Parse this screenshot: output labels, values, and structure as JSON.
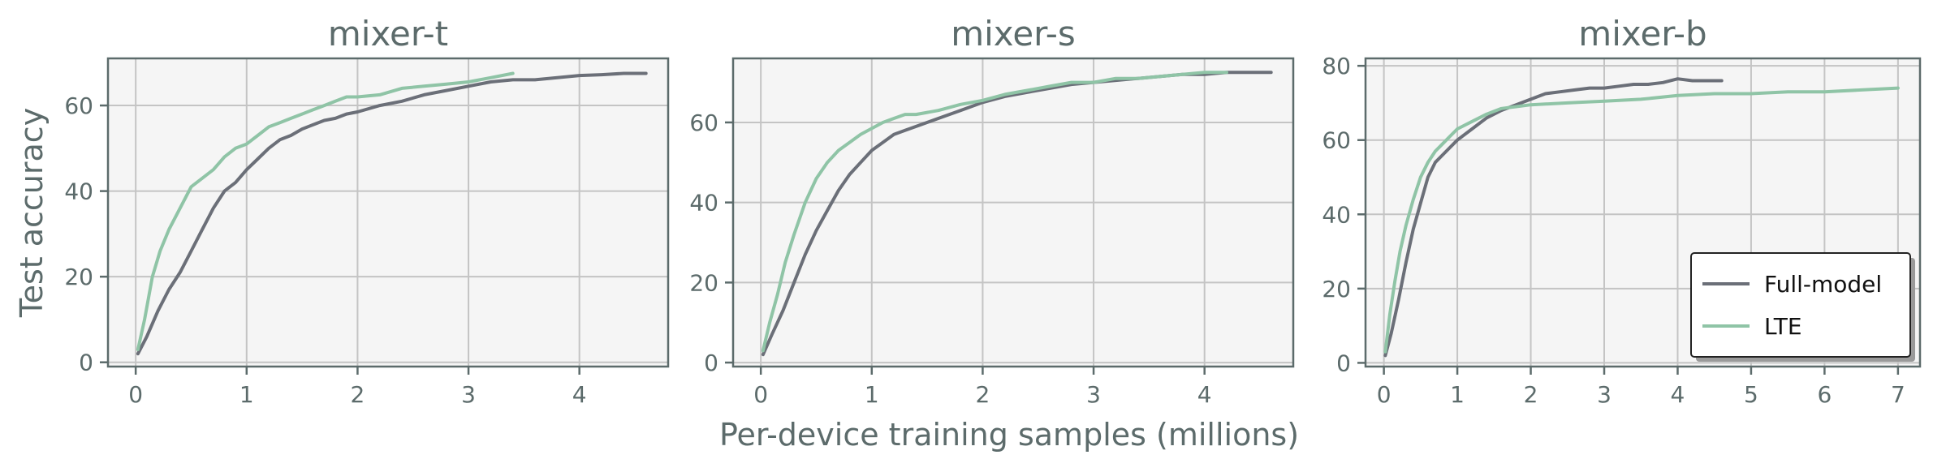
{
  "figure": {
    "xlabel": "Per-device training samples (millions)",
    "ylabel": "Test accuracy",
    "colors": {
      "full_model": "#6b6f78",
      "lte": "#8fc4a6",
      "frame": "#5c6b6b",
      "grid": "#c4c4c4",
      "panel_bg": "#f5f5f5"
    }
  },
  "chart_data": [
    {
      "type": "line",
      "title": "mixer-t",
      "xlim": [
        -0.25,
        4.8
      ],
      "ylim": [
        -1,
        71
      ],
      "xticks": [
        0,
        1,
        2,
        3,
        4
      ],
      "yticks": [
        0,
        20,
        40,
        60
      ],
      "grid": true,
      "series": [
        {
          "name": "Full-model",
          "color": "#6b6f78",
          "points": [
            [
              0.02,
              2
            ],
            [
              0.1,
              6
            ],
            [
              0.2,
              12
            ],
            [
              0.3,
              17
            ],
            [
              0.4,
              21
            ],
            [
              0.5,
              26
            ],
            [
              0.6,
              31
            ],
            [
              0.7,
              36
            ],
            [
              0.8,
              40
            ],
            [
              0.9,
              42
            ],
            [
              1.0,
              45
            ],
            [
              1.1,
              47.5
            ],
            [
              1.2,
              50
            ],
            [
              1.3,
              52
            ],
            [
              1.4,
              53
            ],
            [
              1.5,
              54.5
            ],
            [
              1.6,
              55.5
            ],
            [
              1.7,
              56.5
            ],
            [
              1.8,
              57
            ],
            [
              1.9,
              58
            ],
            [
              2.0,
              58.5
            ],
            [
              2.2,
              60
            ],
            [
              2.4,
              61
            ],
            [
              2.6,
              62.5
            ],
            [
              2.8,
              63.5
            ],
            [
              3.0,
              64.5
            ],
            [
              3.2,
              65.5
            ],
            [
              3.4,
              66
            ],
            [
              3.6,
              66
            ],
            [
              3.8,
              66.5
            ],
            [
              4.0,
              67
            ],
            [
              4.2,
              67.2
            ],
            [
              4.4,
              67.5
            ],
            [
              4.6,
              67.5
            ]
          ]
        },
        {
          "name": "LTE",
          "color": "#8fc4a6",
          "points": [
            [
              0.02,
              3
            ],
            [
              0.08,
              10
            ],
            [
              0.15,
              20
            ],
            [
              0.22,
              26
            ],
            [
              0.3,
              31
            ],
            [
              0.4,
              36
            ],
            [
              0.5,
              41
            ],
            [
              0.6,
              43
            ],
            [
              0.7,
              45
            ],
            [
              0.8,
              48
            ],
            [
              0.9,
              50
            ],
            [
              1.0,
              51
            ],
            [
              1.1,
              53
            ],
            [
              1.2,
              55
            ],
            [
              1.3,
              56
            ],
            [
              1.4,
              57
            ],
            [
              1.5,
              58
            ],
            [
              1.6,
              59
            ],
            [
              1.7,
              60
            ],
            [
              1.8,
              61
            ],
            [
              1.9,
              62
            ],
            [
              2.0,
              62
            ],
            [
              2.2,
              62.5
            ],
            [
              2.4,
              64
            ],
            [
              2.6,
              64.5
            ],
            [
              2.8,
              65
            ],
            [
              3.0,
              65.5
            ],
            [
              3.2,
              66.5
            ],
            [
              3.4,
              67.5
            ]
          ]
        }
      ]
    },
    {
      "type": "line",
      "title": "mixer-s",
      "xlim": [
        -0.25,
        4.8
      ],
      "ylim": [
        -1,
        76
      ],
      "xticks": [
        0,
        1,
        2,
        3,
        4
      ],
      "yticks": [
        0,
        20,
        40,
        60
      ],
      "grid": true,
      "series": [
        {
          "name": "Full-model",
          "color": "#6b6f78",
          "points": [
            [
              0.02,
              2
            ],
            [
              0.1,
              7
            ],
            [
              0.2,
              13
            ],
            [
              0.3,
              20
            ],
            [
              0.4,
              27
            ],
            [
              0.5,
              33
            ],
            [
              0.6,
              38
            ],
            [
              0.7,
              43
            ],
            [
              0.8,
              47
            ],
            [
              0.9,
              50
            ],
            [
              1.0,
              53
            ],
            [
              1.1,
              55
            ],
            [
              1.2,
              57
            ],
            [
              1.3,
              58
            ],
            [
              1.4,
              59
            ],
            [
              1.6,
              61
            ],
            [
              1.8,
              63
            ],
            [
              2.0,
              65
            ],
            [
              2.2,
              66.5
            ],
            [
              2.4,
              67.5
            ],
            [
              2.6,
              68.5
            ],
            [
              2.8,
              69.5
            ],
            [
              3.0,
              70
            ],
            [
              3.2,
              70.5
            ],
            [
              3.4,
              71
            ],
            [
              3.6,
              71.5
            ],
            [
              3.8,
              72
            ],
            [
              4.0,
              72
            ],
            [
              4.2,
              72.5
            ],
            [
              4.4,
              72.5
            ],
            [
              4.6,
              72.5
            ]
          ]
        },
        {
          "name": "LTE",
          "color": "#8fc4a6",
          "points": [
            [
              0.02,
              3
            ],
            [
              0.08,
              10
            ],
            [
              0.15,
              17
            ],
            [
              0.22,
              25
            ],
            [
              0.3,
              32
            ],
            [
              0.4,
              40
            ],
            [
              0.5,
              46
            ],
            [
              0.6,
              50
            ],
            [
              0.7,
              53
            ],
            [
              0.8,
              55
            ],
            [
              0.9,
              57
            ],
            [
              1.0,
              58.5
            ],
            [
              1.1,
              60
            ],
            [
              1.2,
              61
            ],
            [
              1.3,
              62
            ],
            [
              1.4,
              62
            ],
            [
              1.6,
              63
            ],
            [
              1.8,
              64.5
            ],
            [
              2.0,
              65.5
            ],
            [
              2.2,
              67
            ],
            [
              2.4,
              68
            ],
            [
              2.6,
              69
            ],
            [
              2.8,
              70
            ],
            [
              3.0,
              70
            ],
            [
              3.2,
              71
            ],
            [
              3.4,
              71
            ],
            [
              3.6,
              71.5
            ],
            [
              3.8,
              72
            ],
            [
              4.0,
              72.5
            ],
            [
              4.2,
              72.5
            ]
          ]
        }
      ]
    },
    {
      "type": "line",
      "title": "mixer-b",
      "xlim": [
        -0.25,
        7.3
      ],
      "ylim": [
        -1,
        82
      ],
      "xticks": [
        0,
        1,
        2,
        3,
        4,
        5,
        6,
        7
      ],
      "yticks": [
        0,
        20,
        40,
        60,
        80
      ],
      "grid": true,
      "legend": {
        "position": "lower-right",
        "entries": [
          "Full-model",
          "LTE"
        ]
      },
      "series": [
        {
          "name": "Full-model",
          "color": "#6b6f78",
          "points": [
            [
              0.02,
              2
            ],
            [
              0.1,
              8
            ],
            [
              0.2,
              17
            ],
            [
              0.3,
              27
            ],
            [
              0.4,
              36
            ],
            [
              0.5,
              43
            ],
            [
              0.6,
              50
            ],
            [
              0.7,
              54
            ],
            [
              0.8,
              56
            ],
            [
              0.9,
              58
            ],
            [
              1.0,
              60
            ],
            [
              1.2,
              63
            ],
            [
              1.4,
              66
            ],
            [
              1.6,
              68
            ],
            [
              1.8,
              69.5
            ],
            [
              2.0,
              71
            ],
            [
              2.2,
              72.5
            ],
            [
              2.4,
              73
            ],
            [
              2.6,
              73.5
            ],
            [
              2.8,
              74
            ],
            [
              3.0,
              74
            ],
            [
              3.2,
              74.5
            ],
            [
              3.4,
              75
            ],
            [
              3.6,
              75
            ],
            [
              3.8,
              75.5
            ],
            [
              4.0,
              76.5
            ],
            [
              4.2,
              76
            ],
            [
              4.4,
              76
            ],
            [
              4.6,
              76
            ]
          ]
        },
        {
          "name": "LTE",
          "color": "#8fc4a6",
          "points": [
            [
              0.02,
              3
            ],
            [
              0.08,
              13
            ],
            [
              0.15,
              22
            ],
            [
              0.22,
              30
            ],
            [
              0.3,
              37
            ],
            [
              0.4,
              44
            ],
            [
              0.5,
              50
            ],
            [
              0.6,
              54
            ],
            [
              0.7,
              57
            ],
            [
              0.8,
              59
            ],
            [
              0.9,
              61
            ],
            [
              1.0,
              63
            ],
            [
              1.2,
              65
            ],
            [
              1.4,
              67
            ],
            [
              1.6,
              68.5
            ],
            [
              1.8,
              69
            ],
            [
              2.0,
              69.5
            ],
            [
              2.5,
              70
            ],
            [
              3.0,
              70.5
            ],
            [
              3.5,
              71
            ],
            [
              4.0,
              72
            ],
            [
              4.5,
              72.5
            ],
            [
              5.0,
              72.5
            ],
            [
              5.5,
              73
            ],
            [
              6.0,
              73
            ],
            [
              6.5,
              73.5
            ],
            [
              7.0,
              74
            ]
          ]
        }
      ]
    }
  ]
}
